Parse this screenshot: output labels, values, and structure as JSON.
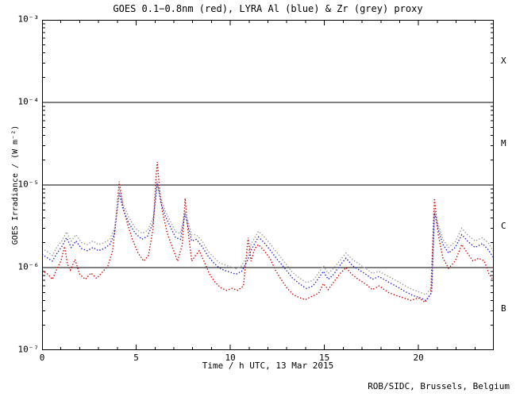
{
  "header": {
    "title": "GOES 0.1−0.8nm (red), LYRA Al (blue) & Zr (grey) proxy"
  },
  "footer": {
    "credit": "ROB/SIDC, Brussels, Belgium"
  },
  "chart_data": {
    "type": "line",
    "title": "GOES 0.1−0.8nm (red), LYRA Al (blue) & Zr (grey) proxy",
    "xlabel": "Time / h UTC, 13 Mar 2015",
    "ylabel": "GOES Irradiance / (W m⁻²)",
    "xlim": [
      0,
      24
    ],
    "ylim": [
      1e-07,
      0.001
    ],
    "y_log_scale": true,
    "grid": false,
    "background": "#ffffff",
    "frame_color": "#000000",
    "x_major_ticks": [
      0,
      5,
      10,
      15,
      20
    ],
    "x_minor_step": 1,
    "y_decade_ticks": [
      {
        "exponent": -3,
        "label": "10⁻³"
      },
      {
        "exponent": -4,
        "label": "10⁻⁴"
      },
      {
        "exponent": -5,
        "label": "10⁻⁵"
      },
      {
        "exponent": -6,
        "label": "10⁻⁶"
      },
      {
        "exponent": -7,
        "label": "10⁻⁷"
      }
    ],
    "hlines": [
      0.0001,
      1e-05,
      1e-06
    ],
    "flare_class_labels": [
      {
        "label": "X",
        "band_center_exponent": -3.5
      },
      {
        "label": "M",
        "band_center_exponent": -4.5
      },
      {
        "label": "C",
        "band_center_exponent": -5.5
      },
      {
        "label": "B",
        "band_center_exponent": -6.5
      }
    ],
    "series": [
      {
        "name": "GOES 0.1-0.8nm (red)",
        "color": "#cc0000",
        "style": "dotted",
        "points": [
          [
            0.0,
            9.3e-07
          ],
          [
            0.3,
            8.3e-07
          ],
          [
            0.55,
            7.2e-07
          ],
          [
            0.8,
            9.8e-07
          ],
          [
            1.0,
            1.2e-06
          ],
          [
            1.2,
            1.8e-06
          ],
          [
            1.35,
            1.1e-06
          ],
          [
            1.5,
            9.3e-07
          ],
          [
            1.75,
            1.25e-06
          ],
          [
            2.0,
            8.3e-07
          ],
          [
            2.3,
            7.2e-07
          ],
          [
            2.6,
            8.6e-07
          ],
          [
            2.9,
            7.4e-07
          ],
          [
            3.2,
            8.8e-07
          ],
          [
            3.5,
            1.05e-06
          ],
          [
            3.75,
            1.6e-06
          ],
          [
            3.95,
            4.5e-06
          ],
          [
            4.1,
            1.1e-05
          ],
          [
            4.3,
            5.5e-06
          ],
          [
            4.55,
            3.3e-06
          ],
          [
            4.8,
            2.2e-06
          ],
          [
            5.1,
            1.5e-06
          ],
          [
            5.4,
            1.2e-06
          ],
          [
            5.65,
            1.4e-06
          ],
          [
            5.9,
            3e-06
          ],
          [
            6.05,
            1.2e-05
          ],
          [
            6.12,
            1.9e-05
          ],
          [
            6.25,
            8.6e-06
          ],
          [
            6.4,
            4.7e-06
          ],
          [
            6.65,
            2.6e-06
          ],
          [
            6.95,
            1.7e-06
          ],
          [
            7.2,
            1.2e-06
          ],
          [
            7.45,
            1.9e-06
          ],
          [
            7.6,
            6.9e-06
          ],
          [
            7.75,
            2.9e-06
          ],
          [
            7.95,
            1.2e-06
          ],
          [
            8.15,
            1.4e-06
          ],
          [
            8.35,
            1.6e-06
          ],
          [
            8.6,
            1.2e-06
          ],
          [
            8.9,
            8.3e-07
          ],
          [
            9.2,
            6.6e-07
          ],
          [
            9.5,
            5.7e-07
          ],
          [
            9.8,
            5.3e-07
          ],
          [
            10.1,
            5.6e-07
          ],
          [
            10.4,
            5.3e-07
          ],
          [
            10.7,
            6e-07
          ],
          [
            10.95,
            2.3e-06
          ],
          [
            11.1,
            1.2e-06
          ],
          [
            11.3,
            1.7e-06
          ],
          [
            11.5,
            1.9e-06
          ],
          [
            11.8,
            1.6e-06
          ],
          [
            12.1,
            1.3e-06
          ],
          [
            12.4,
            9.3e-07
          ],
          [
            12.7,
            7.2e-07
          ],
          [
            13.0,
            5.7e-07
          ],
          [
            13.35,
            4.7e-07
          ],
          [
            13.7,
            4.3e-07
          ],
          [
            14.0,
            4.1e-07
          ],
          [
            14.35,
            4.5e-07
          ],
          [
            14.7,
            4.9e-07
          ],
          [
            14.95,
            6.4e-07
          ],
          [
            15.2,
            5.4e-07
          ],
          [
            15.5,
            6.7e-07
          ],
          [
            15.8,
            8.3e-07
          ],
          [
            16.15,
            1e-06
          ],
          [
            16.45,
            8.3e-07
          ],
          [
            16.8,
            7.2e-07
          ],
          [
            17.2,
            6.3e-07
          ],
          [
            17.55,
            5.4e-07
          ],
          [
            17.9,
            6e-07
          ],
          [
            18.4,
            5e-07
          ],
          [
            18.8,
            4.6e-07
          ],
          [
            19.2,
            4.3e-07
          ],
          [
            19.6,
            4e-07
          ],
          [
            20.0,
            4.3e-07
          ],
          [
            20.35,
            3.8e-07
          ],
          [
            20.65,
            4.8e-07
          ],
          [
            20.85,
            6.9e-06
          ],
          [
            21.05,
            2.5e-06
          ],
          [
            21.3,
            1.3e-06
          ],
          [
            21.6,
            9.8e-07
          ],
          [
            21.95,
            1.2e-06
          ],
          [
            22.3,
            1.9e-06
          ],
          [
            22.6,
            1.5e-06
          ],
          [
            22.9,
            1.2e-06
          ],
          [
            23.2,
            1.3e-06
          ],
          [
            23.5,
            1.2e-06
          ],
          [
            23.75,
            8.3e-07
          ],
          [
            24.0,
            7e-07
          ]
        ]
      },
      {
        "name": "LYRA Al proxy (blue)",
        "color": "#2222cc",
        "style": "dotted",
        "points": [
          [
            0.0,
            1.45e-06
          ],
          [
            0.3,
            1.3e-06
          ],
          [
            0.55,
            1.2e-06
          ],
          [
            0.8,
            1.5e-06
          ],
          [
            1.05,
            1.8e-06
          ],
          [
            1.3,
            2.3e-06
          ],
          [
            1.55,
            1.75e-06
          ],
          [
            1.8,
            2.1e-06
          ],
          [
            2.1,
            1.7e-06
          ],
          [
            2.4,
            1.6e-06
          ],
          [
            2.7,
            1.75e-06
          ],
          [
            3.0,
            1.6e-06
          ],
          [
            3.3,
            1.7e-06
          ],
          [
            3.6,
            1.9e-06
          ],
          [
            3.85,
            2.6e-06
          ],
          [
            4.1,
            8e-06
          ],
          [
            4.3,
            5.1e-06
          ],
          [
            4.6,
            3.5e-06
          ],
          [
            4.95,
            2.6e-06
          ],
          [
            5.3,
            2.2e-06
          ],
          [
            5.6,
            2.4e-06
          ],
          [
            5.9,
            3.5e-06
          ],
          [
            6.12,
            1.1e-05
          ],
          [
            6.3,
            6.2e-06
          ],
          [
            6.55,
            4.2e-06
          ],
          [
            6.85,
            3e-06
          ],
          [
            7.1,
            2.3e-06
          ],
          [
            7.35,
            2.2e-06
          ],
          [
            7.6,
            4.5e-06
          ],
          [
            7.75,
            3.2e-06
          ],
          [
            7.95,
            2.1e-06
          ],
          [
            8.2,
            2.2e-06
          ],
          [
            8.5,
            1.8e-06
          ],
          [
            8.8,
            1.4e-06
          ],
          [
            9.1,
            1.15e-06
          ],
          [
            9.4,
            1e-06
          ],
          [
            9.7,
            9.2e-07
          ],
          [
            10.0,
            8.8e-07
          ],
          [
            10.3,
            8.3e-07
          ],
          [
            10.6,
            9e-07
          ],
          [
            10.9,
            1.2e-06
          ],
          [
            11.15,
            1.7e-06
          ],
          [
            11.5,
            2.35e-06
          ],
          [
            11.8,
            2e-06
          ],
          [
            12.1,
            1.65e-06
          ],
          [
            12.5,
            1.25e-06
          ],
          [
            12.9,
            9.8e-07
          ],
          [
            13.3,
            7.5e-07
          ],
          [
            13.7,
            6.3e-07
          ],
          [
            14.05,
            5.6e-07
          ],
          [
            14.4,
            6e-07
          ],
          [
            14.75,
            7.8e-07
          ],
          [
            14.95,
            9e-07
          ],
          [
            15.2,
            7.2e-07
          ],
          [
            15.5,
            8.3e-07
          ],
          [
            15.8,
            1.05e-06
          ],
          [
            16.15,
            1.3e-06
          ],
          [
            16.5,
            1.05e-06
          ],
          [
            16.9,
            9.2e-07
          ],
          [
            17.3,
            8e-07
          ],
          [
            17.55,
            7.2e-07
          ],
          [
            17.9,
            7.8e-07
          ],
          [
            18.5,
            6.5e-07
          ],
          [
            18.9,
            5.8e-07
          ],
          [
            19.3,
            5.1e-07
          ],
          [
            19.7,
            4.6e-07
          ],
          [
            20.1,
            4.3e-07
          ],
          [
            20.4,
            4e-07
          ],
          [
            20.7,
            5e-07
          ],
          [
            20.85,
            4.6e-06
          ],
          [
            21.05,
            2.9e-06
          ],
          [
            21.3,
            1.9e-06
          ],
          [
            21.6,
            1.5e-06
          ],
          [
            21.95,
            1.75e-06
          ],
          [
            22.3,
            2.5e-06
          ],
          [
            22.6,
            2.1e-06
          ],
          [
            23.0,
            1.75e-06
          ],
          [
            23.4,
            1.95e-06
          ],
          [
            23.7,
            1.65e-06
          ],
          [
            24.0,
            1.3e-06
          ]
        ]
      },
      {
        "name": "LYRA Zr proxy (grey)",
        "color": "#999999",
        "style": "dotted",
        "points": [
          [
            0.0,
            1.7e-06
          ],
          [
            0.3,
            1.55e-06
          ],
          [
            0.55,
            1.4e-06
          ],
          [
            0.8,
            1.8e-06
          ],
          [
            1.05,
            2.1e-06
          ],
          [
            1.3,
            2.7e-06
          ],
          [
            1.55,
            2.1e-06
          ],
          [
            1.8,
            2.5e-06
          ],
          [
            2.1,
            2e-06
          ],
          [
            2.4,
            1.9e-06
          ],
          [
            2.7,
            2.1e-06
          ],
          [
            3.0,
            1.9e-06
          ],
          [
            3.3,
            2e-06
          ],
          [
            3.6,
            2.2e-06
          ],
          [
            3.85,
            3e-06
          ],
          [
            4.1,
            9.2e-06
          ],
          [
            4.3,
            5.9e-06
          ],
          [
            4.6,
            4.1e-06
          ],
          [
            4.95,
            3e-06
          ],
          [
            5.3,
            2.6e-06
          ],
          [
            5.6,
            2.8e-06
          ],
          [
            5.9,
            4e-06
          ],
          [
            6.12,
            1.05e-05
          ],
          [
            6.3,
            7e-06
          ],
          [
            6.55,
            4.8e-06
          ],
          [
            6.85,
            3.5e-06
          ],
          [
            7.1,
            2.7e-06
          ],
          [
            7.35,
            2.6e-06
          ],
          [
            7.6,
            4.9e-06
          ],
          [
            7.75,
            3.7e-06
          ],
          [
            7.95,
            2.5e-06
          ],
          [
            8.2,
            2.5e-06
          ],
          [
            8.5,
            2.1e-06
          ],
          [
            8.8,
            1.6e-06
          ],
          [
            9.1,
            1.35e-06
          ],
          [
            9.4,
            1.15e-06
          ],
          [
            9.7,
            1.08e-06
          ],
          [
            10.0,
            1.02e-06
          ],
          [
            10.3,
            9.7e-07
          ],
          [
            10.6,
            1.05e-06
          ],
          [
            10.9,
            1.4e-06
          ],
          [
            11.15,
            2e-06
          ],
          [
            11.5,
            2.75e-06
          ],
          [
            11.8,
            2.35e-06
          ],
          [
            12.1,
            1.95e-06
          ],
          [
            12.5,
            1.5e-06
          ],
          [
            12.9,
            1.15e-06
          ],
          [
            13.3,
            8.8e-07
          ],
          [
            13.7,
            7.4e-07
          ],
          [
            14.05,
            6.6e-07
          ],
          [
            14.4,
            7e-07
          ],
          [
            14.75,
            9e-07
          ],
          [
            14.95,
            1.05e-06
          ],
          [
            15.2,
            8.5e-07
          ],
          [
            15.5,
            9.8e-07
          ],
          [
            15.8,
            1.2e-06
          ],
          [
            16.15,
            1.5e-06
          ],
          [
            16.5,
            1.25e-06
          ],
          [
            16.9,
            1.08e-06
          ],
          [
            17.3,
            9.4e-07
          ],
          [
            17.55,
            8.5e-07
          ],
          [
            17.9,
            9e-07
          ],
          [
            18.5,
            7.6e-07
          ],
          [
            18.9,
            6.8e-07
          ],
          [
            19.3,
            6e-07
          ],
          [
            19.7,
            5.4e-07
          ],
          [
            20.1,
            5e-07
          ],
          [
            20.4,
            4.7e-07
          ],
          [
            20.7,
            5.8e-07
          ],
          [
            20.85,
            5e-06
          ],
          [
            21.05,
            3.3e-06
          ],
          [
            21.3,
            2.2e-06
          ],
          [
            21.6,
            1.75e-06
          ],
          [
            21.95,
            2.05e-06
          ],
          [
            22.3,
            3e-06
          ],
          [
            22.6,
            2.5e-06
          ],
          [
            23.0,
            2.1e-06
          ],
          [
            23.4,
            2.3e-06
          ],
          [
            23.7,
            2e-06
          ],
          [
            24.0,
            1.55e-06
          ]
        ]
      }
    ]
  }
}
